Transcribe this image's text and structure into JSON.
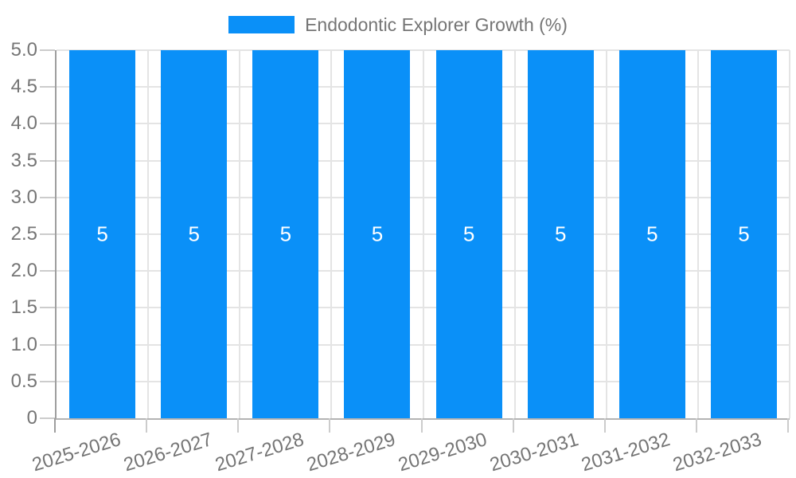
{
  "legend": {
    "label": "Endodontic Explorer Growth (%)"
  },
  "chart_data": {
    "type": "bar",
    "title": "",
    "categories": [
      "2025-2026",
      "2026-2027",
      "2027-2028",
      "2028-2029",
      "2029-2030",
      "2030-2031",
      "2031-2032",
      "2032-2033"
    ],
    "series": [
      {
        "name": "Endodontic Explorer Growth (%)",
        "values": [
          5,
          5,
          5,
          5,
          5,
          5,
          5,
          5
        ]
      }
    ],
    "bar_value_labels": [
      "5",
      "5",
      "5",
      "5",
      "5",
      "5",
      "5",
      "5"
    ],
    "xlabel": "",
    "ylabel": "",
    "ylim": [
      0,
      5
    ],
    "ytick_step": 0.5,
    "ytick_labels": [
      "0",
      "0.5",
      "1.0",
      "1.5",
      "2.0",
      "2.5",
      "3.0",
      "3.5",
      "4.0",
      "4.5",
      "5.0"
    ],
    "grid": "on",
    "legend_position": "top-center"
  },
  "colors": {
    "bar": "#0A90F8",
    "bar_label": "#FFFFFF",
    "axis_line_y": "#9E9E9E",
    "axis_line_x": "#B3B3B3",
    "gridline": "#E4E4E4",
    "tick": "#CCCCCC",
    "tick_label": "#757575",
    "legend_label": "#757575",
    "background": "#FFFFFF"
  }
}
